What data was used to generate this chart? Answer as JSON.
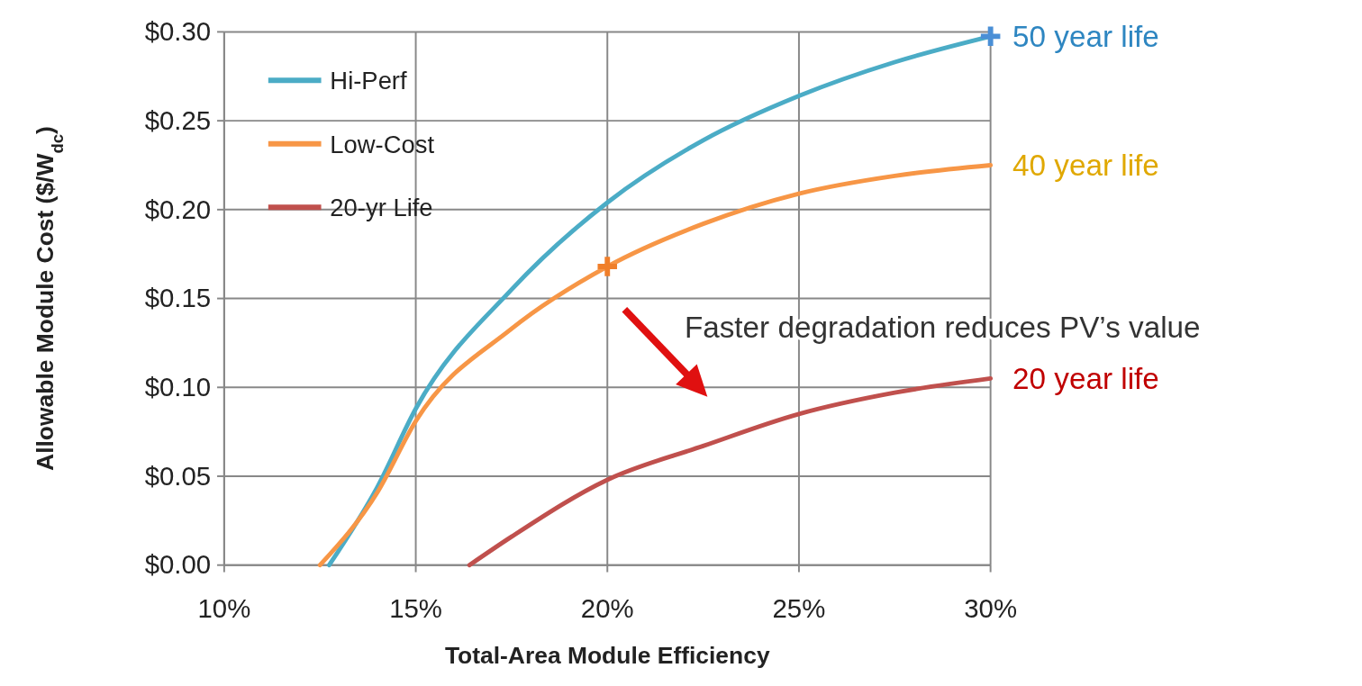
{
  "chart_data": {
    "type": "line",
    "xlabel": "Total-Area Module Efficiency",
    "ylabel": "Allowable Module Cost ($/W$_{dc}$)",
    "xlim": [
      10,
      30
    ],
    "xticks": [
      {
        "value": 10,
        "label": "10%"
      },
      {
        "value": 15,
        "label": "15%"
      },
      {
        "value": 20,
        "label": "20%"
      },
      {
        "value": 25,
        "label": "25%"
      },
      {
        "value": 30,
        "label": "30%"
      }
    ],
    "ylim": [
      0,
      0.3
    ],
    "yticks": [
      {
        "value": 0,
        "label": "$0.00"
      },
      {
        "value": 0.05,
        "label": "$0.05"
      },
      {
        "value": 0.1,
        "label": "$0.10"
      },
      {
        "value": 0.15,
        "label": "$0.15"
      },
      {
        "value": 0.2,
        "label": "$0.20"
      },
      {
        "value": 0.25,
        "label": "$0.25"
      },
      {
        "value": 0.3,
        "label": "$0.30"
      }
    ],
    "grid": true,
    "legend": "top left",
    "marker": "none",
    "line_style": "solid",
    "series": [
      {
        "name": "Hi-Perf",
        "color": "#4bacc6",
        "x": [
          12.74,
          14,
          15,
          17.5,
          20,
          22.5,
          25,
          27.5,
          30
        ],
        "values": [
          0,
          0.044,
          0.088,
          0.155,
          0.204,
          0.239,
          0.264,
          0.283,
          0.2975
        ]
      },
      {
        "name": "Low-Cost",
        "color": "#f79646",
        "x": [
          12.5,
          14,
          15,
          17.5,
          20,
          22.5,
          25,
          27.5,
          30
        ],
        "values": [
          0,
          0.041,
          0.081,
          0.133,
          0.168,
          0.192,
          0.209,
          0.219,
          0.225
        ]
      },
      {
        "name": "20-yr Life",
        "color": "#c0504d",
        "x": [
          16.4,
          17.5,
          20,
          22.5,
          25,
          27.5,
          30
        ],
        "values": [
          0,
          0.016,
          0.048,
          0.067,
          0.085,
          0.097,
          0.105
        ]
      },
      {
        "type": "scatter",
        "marker": "cross",
        "color": "#4a8fd6",
        "x": [
          30
        ],
        "values": [
          0.2975
        ]
      },
      {
        "type": "scatter",
        "marker": "cross",
        "color": "#f07f2a",
        "x": [
          20
        ],
        "values": [
          0.168
        ]
      }
    ],
    "annotations": [
      "50 year life",
      "40 year life",
      "20 year life",
      "Faster degradation reduces PV’s value"
    ]
  }
}
